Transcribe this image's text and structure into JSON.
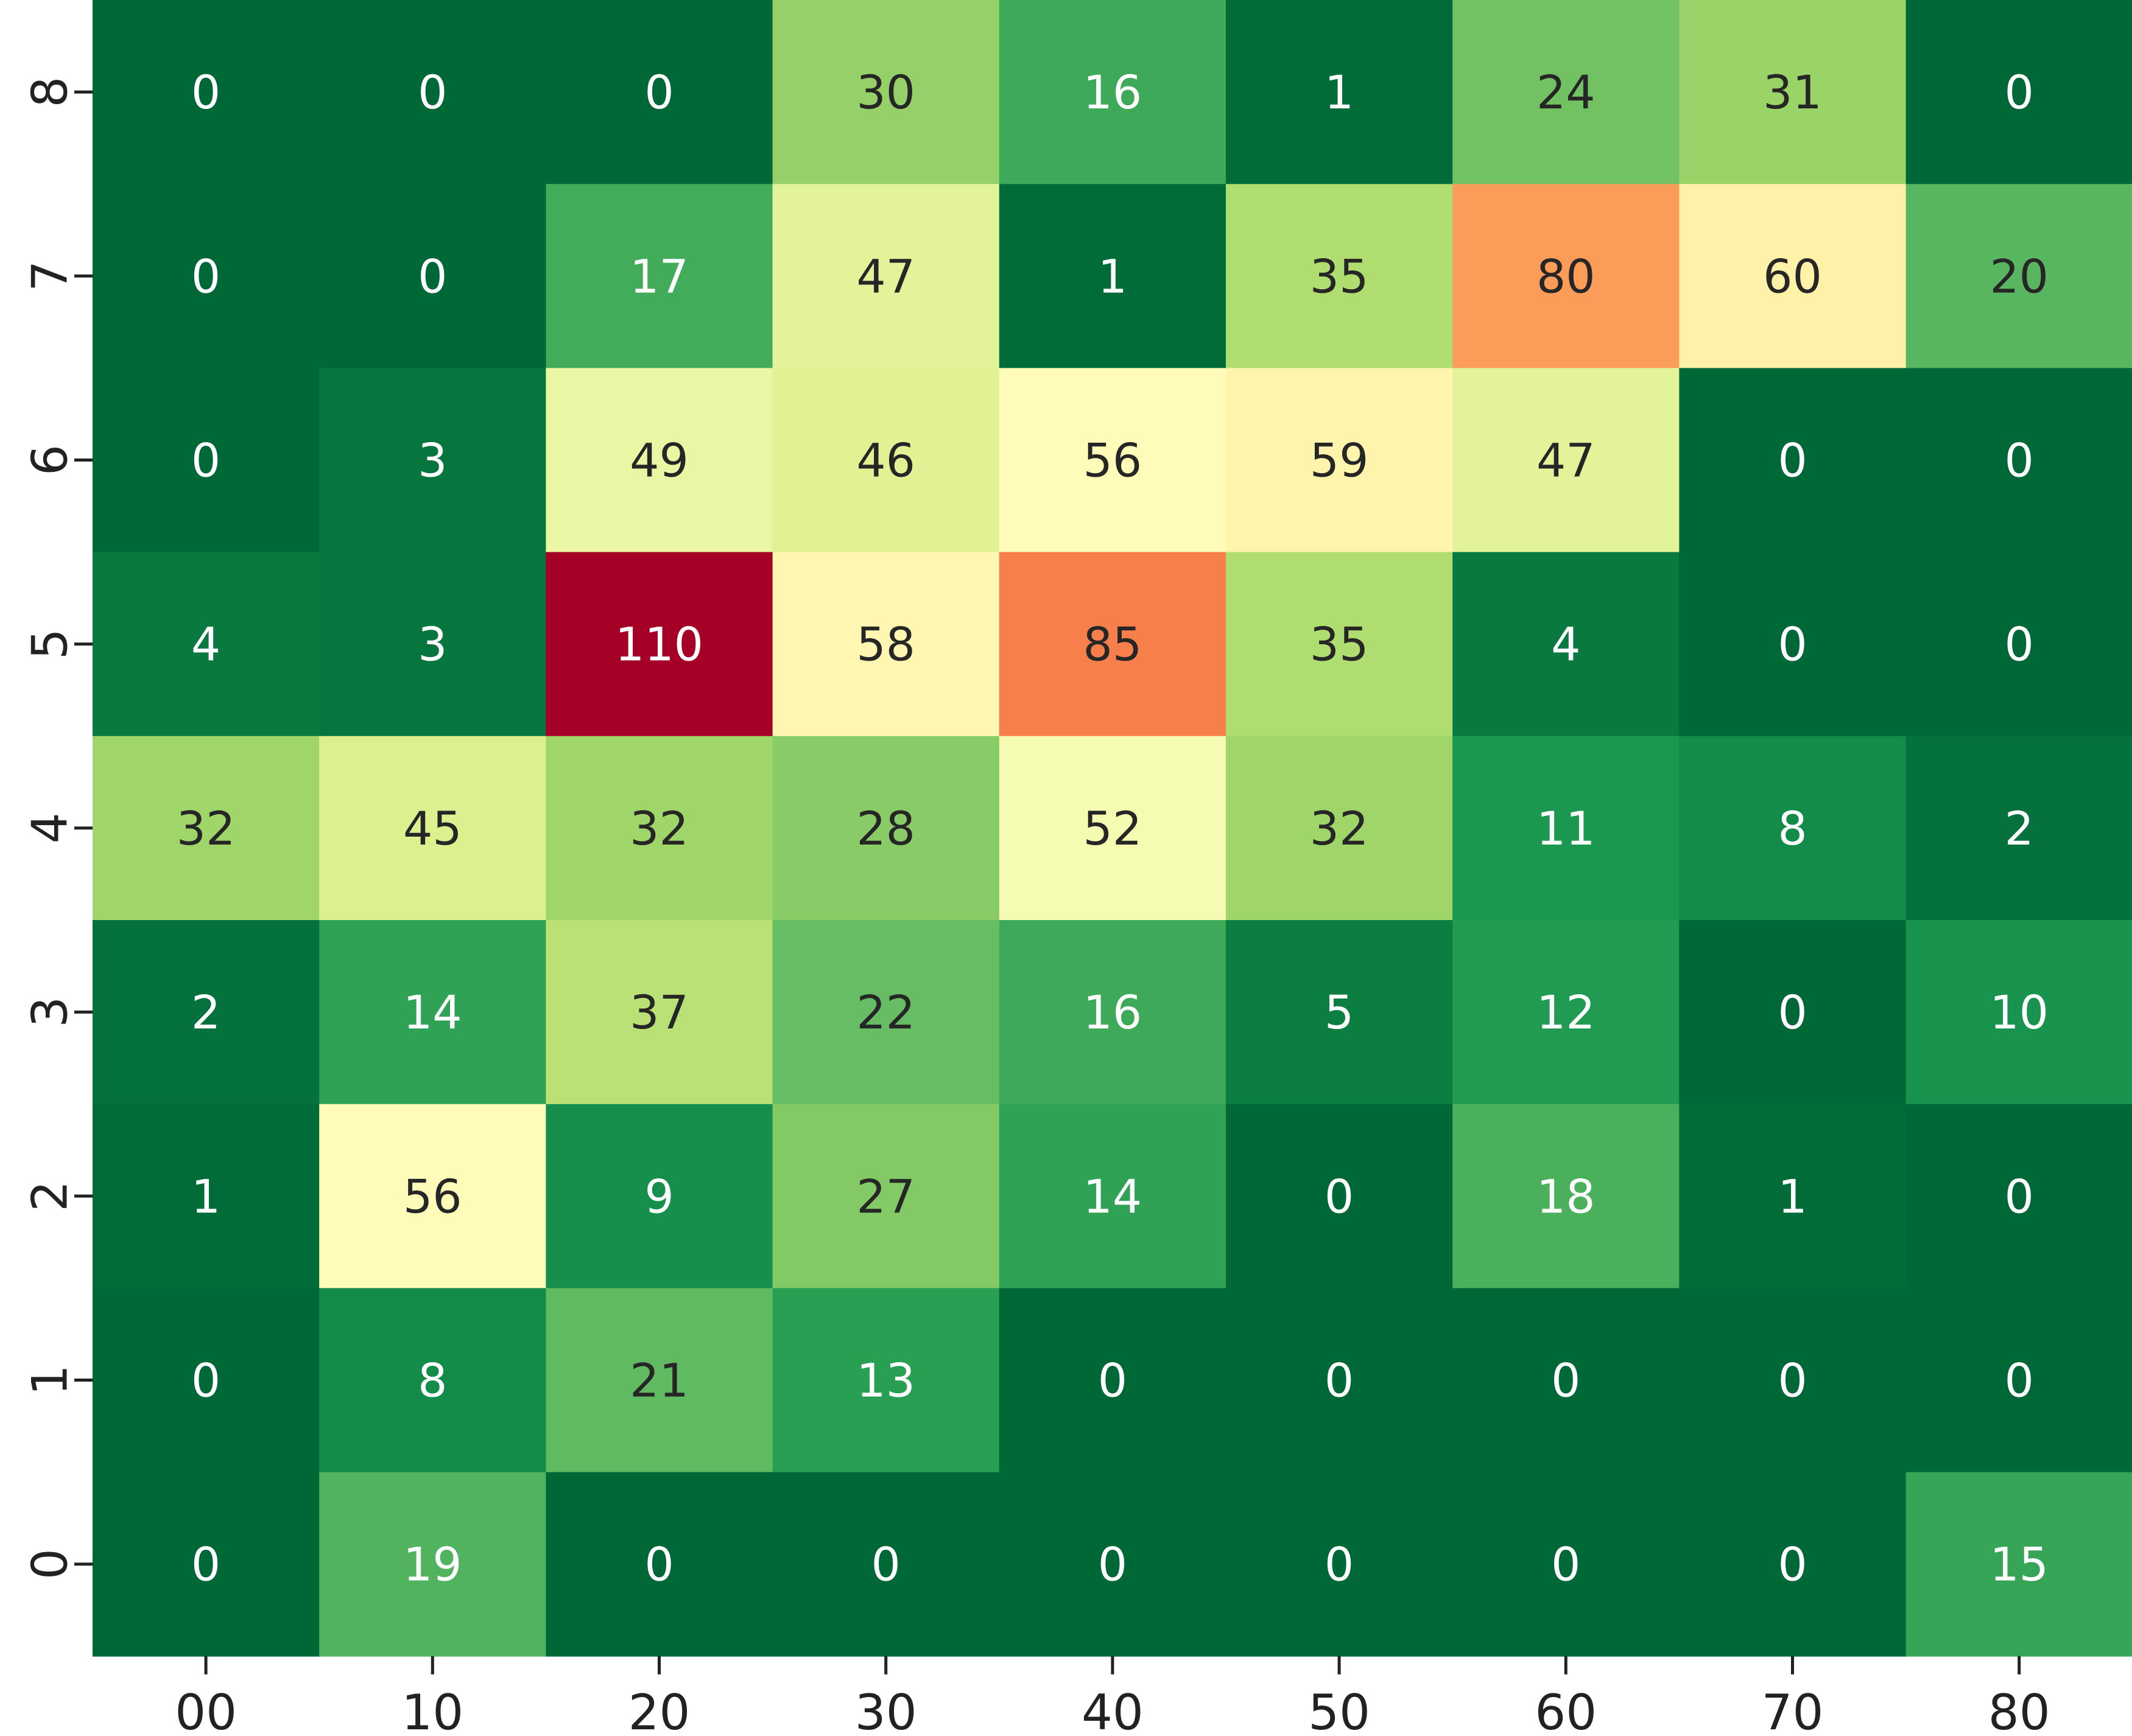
{
  "chart_data": {
    "type": "heatmap",
    "title": "",
    "xlabel": "",
    "ylabel": "",
    "x_categories": [
      "00",
      "10",
      "20",
      "30",
      "40",
      "50",
      "60",
      "70",
      "80"
    ],
    "y_categories": [
      "8",
      "7",
      "6",
      "5",
      "4",
      "3",
      "2",
      "1",
      "0"
    ],
    "values": [
      [
        0,
        0,
        0,
        30,
        16,
        1,
        24,
        31,
        0
      ],
      [
        0,
        0,
        17,
        47,
        1,
        35,
        80,
        60,
        20
      ],
      [
        0,
        3,
        49,
        46,
        56,
        59,
        47,
        0,
        0
      ],
      [
        4,
        3,
        110,
        58,
        85,
        35,
        4,
        0,
        0
      ],
      [
        32,
        45,
        32,
        28,
        52,
        32,
        11,
        8,
        2
      ],
      [
        2,
        14,
        37,
        22,
        16,
        5,
        12,
        0,
        10
      ],
      [
        1,
        56,
        9,
        27,
        14,
        0,
        18,
        1,
        0
      ],
      [
        0,
        8,
        21,
        13,
        0,
        0,
        0,
        0,
        0
      ],
      [
        0,
        19,
        0,
        0,
        0,
        0,
        0,
        0,
        15
      ]
    ],
    "colormap": "RdYlGn_r",
    "vmin": 0,
    "vmax": 110,
    "colorbar": false,
    "annotations": true
  }
}
